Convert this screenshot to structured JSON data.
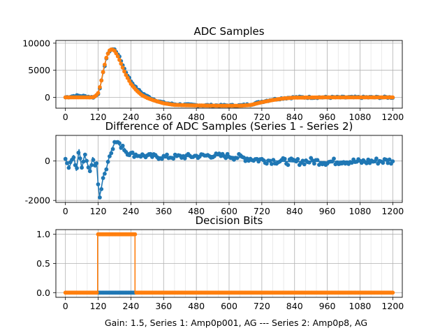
{
  "footer_label": "Gain: 1.5, Series 1: Amp0p001, AG --- Series 2: Amp0p8, AG",
  "colors": {
    "series1": "#1f77b4",
    "series2": "#ff7f0e",
    "grid": "#b0b0b0"
  },
  "chart_data": [
    {
      "type": "line",
      "title": "ADC Samples",
      "xlim": [
        -35,
        1235
      ],
      "ylim": [
        -2000,
        10500
      ],
      "x_ticks": [
        0,
        120,
        240,
        360,
        480,
        600,
        720,
        840,
        960,
        1080,
        1200
      ],
      "y_ticks": [
        0,
        5000,
        10000
      ],
      "grid": true,
      "markers": true,
      "series": [
        {
          "color": "#1f77b4",
          "points": [
            [
              0,
              0
            ],
            [
              20,
              150
            ],
            [
              40,
              300
            ],
            [
              60,
              250
            ],
            [
              80,
              150
            ],
            [
              100,
              0
            ],
            [
              110,
              200
            ],
            [
              120,
              700
            ],
            [
              130,
              2500
            ],
            [
              140,
              5000
            ],
            [
              150,
              7200
            ],
            [
              160,
              8500
            ],
            [
              170,
              8900
            ],
            [
              180,
              8800
            ],
            [
              190,
              8200
            ],
            [
              200,
              7200
            ],
            [
              210,
              6000
            ],
            [
              220,
              4800
            ],
            [
              240,
              3000
            ],
            [
              260,
              1700
            ],
            [
              280,
              800
            ],
            [
              300,
              200
            ],
            [
              320,
              -300
            ],
            [
              340,
              -700
            ],
            [
              360,
              -1000
            ],
            [
              400,
              -1300
            ],
            [
              480,
              -1450
            ],
            [
              560,
              -1500
            ],
            [
              640,
              -1500
            ],
            [
              680,
              -1300
            ],
            [
              720,
              -800
            ],
            [
              760,
              -400
            ],
            [
              800,
              -150
            ],
            [
              840,
              0
            ],
            [
              960,
              0
            ],
            [
              1080,
              0
            ],
            [
              1200,
              0
            ]
          ]
        },
        {
          "color": "#ff7f0e",
          "points": [
            [
              0,
              0
            ],
            [
              40,
              0
            ],
            [
              80,
              0
            ],
            [
              100,
              0
            ],
            [
              110,
              200
            ],
            [
              120,
              800
            ],
            [
              130,
              2600
            ],
            [
              140,
              5200
            ],
            [
              150,
              7300
            ],
            [
              160,
              8600
            ],
            [
              170,
              8900
            ],
            [
              180,
              8600
            ],
            [
              190,
              7800
            ],
            [
              200,
              6700
            ],
            [
              210,
              5500
            ],
            [
              220,
              4300
            ],
            [
              240,
              2500
            ],
            [
              260,
              1300
            ],
            [
              280,
              400
            ],
            [
              300,
              -100
            ],
            [
              320,
              -500
            ],
            [
              340,
              -800
            ],
            [
              360,
              -1100
            ],
            [
              400,
              -1400
            ],
            [
              480,
              -1500
            ],
            [
              560,
              -1550
            ],
            [
              640,
              -1550
            ],
            [
              680,
              -1400
            ],
            [
              720,
              -900
            ],
            [
              760,
              -500
            ],
            [
              800,
              -200
            ],
            [
              840,
              -50
            ],
            [
              960,
              0
            ],
            [
              1080,
              0
            ],
            [
              1200,
              0
            ]
          ]
        }
      ]
    },
    {
      "type": "line",
      "title": "Difference of ADC Samples (Series 1 - Series 2)",
      "xlim": [
        -35,
        1235
      ],
      "ylim": [
        -2100,
        1300
      ],
      "x_ticks": [
        0,
        120,
        240,
        360,
        480,
        600,
        720,
        840,
        960,
        1080,
        1200
      ],
      "y_ticks": [
        -2000,
        0
      ],
      "grid": true,
      "markers": true,
      "series": [
        {
          "color": "#1f77b4",
          "points": [
            [
              0,
              100
            ],
            [
              15,
              -300
            ],
            [
              30,
              300
            ],
            [
              40,
              -500
            ],
            [
              50,
              600
            ],
            [
              60,
              -400
            ],
            [
              70,
              300
            ],
            [
              80,
              -100
            ],
            [
              90,
              -600
            ],
            [
              100,
              200
            ],
            [
              110,
              -300
            ],
            [
              115,
              -200
            ],
            [
              120,
              -1200
            ],
            [
              125,
              -1800
            ],
            [
              130,
              -1500
            ],
            [
              140,
              -700
            ],
            [
              150,
              -400
            ],
            [
              160,
              200
            ],
            [
              170,
              600
            ],
            [
              180,
              900
            ],
            [
              190,
              1000
            ],
            [
              200,
              750
            ],
            [
              210,
              800
            ],
            [
              220,
              500
            ],
            [
              240,
              350
            ],
            [
              300,
              250
            ],
            [
              360,
              200
            ],
            [
              420,
              220
            ],
            [
              480,
              250
            ],
            [
              540,
              280
            ],
            [
              600,
              250
            ],
            [
              660,
              150
            ],
            [
              720,
              50
            ],
            [
              780,
              0
            ],
            [
              840,
              -50
            ],
            [
              900,
              0
            ],
            [
              960,
              -50
            ],
            [
              1020,
              0
            ],
            [
              1080,
              -50
            ],
            [
              1140,
              0
            ],
            [
              1200,
              0
            ]
          ]
        }
      ]
    },
    {
      "type": "line",
      "title": "Decision Bits",
      "xlim": [
        -35,
        1235
      ],
      "ylim": [
        -0.08,
        1.08
      ],
      "x_ticks": [
        0,
        120,
        240,
        360,
        480,
        600,
        720,
        840,
        960,
        1080,
        1200
      ],
      "y_ticks": [
        0.0,
        0.5,
        1.0
      ],
      "y_tick_labels": [
        "0.0",
        "0.5",
        "1.0"
      ],
      "xlabel": "Gain: 1.5, Series 1: Amp0p001, AG --- Series 2: Amp0p8, AG",
      "grid": true,
      "markers": true,
      "series": [
        {
          "color": "#1f77b4",
          "points": [
            [
              0,
              0
            ],
            [
              1200,
              0
            ]
          ]
        },
        {
          "color": "#ff7f0e",
          "points": [
            [
              0,
              0
            ],
            [
              118,
              0
            ],
            [
              118,
              1
            ],
            [
              255,
              1
            ],
            [
              255,
              0
            ],
            [
              1200,
              0
            ]
          ]
        }
      ]
    }
  ]
}
